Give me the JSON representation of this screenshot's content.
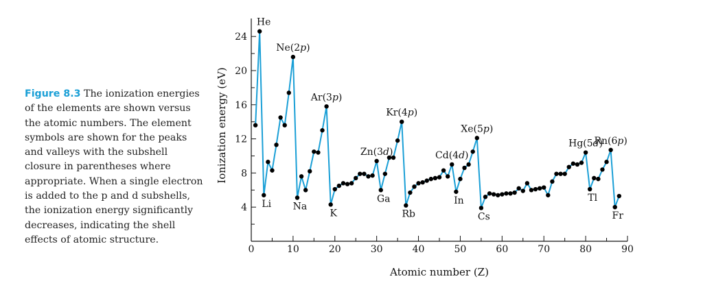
{
  "caption": {
    "label": "Figure 8.3",
    "text": " The ionization energies of the elements are shown versus the atomic numbers. The element symbols are shown for the peaks and valleys with the subshell closure in parentheses where appropriate. When a single electron is added to the p and d subshells, the ionization energy significantly decreases, indicating the shell effects of atomic structure."
  },
  "chart_data": {
    "type": "line",
    "title": "",
    "xlabel": "Atomic number (Z)",
    "ylabel": "Ionization energy (eV)",
    "xlim": [
      0,
      90
    ],
    "ylim": [
      0,
      25
    ],
    "xticks": [
      0,
      10,
      20,
      30,
      40,
      50,
      60,
      70,
      80,
      90
    ],
    "yticks": [
      4,
      8,
      12,
      16,
      20,
      24
    ],
    "grid": false,
    "line_color": "#1a9fd6",
    "marker_color": "#000000",
    "x": [
      1,
      2,
      3,
      4,
      5,
      6,
      7,
      8,
      9,
      10,
      11,
      12,
      13,
      14,
      15,
      16,
      17,
      18,
      19,
      20,
      21,
      22,
      23,
      24,
      25,
      26,
      27,
      28,
      29,
      30,
      31,
      32,
      33,
      34,
      35,
      36,
      37,
      38,
      39,
      40,
      41,
      42,
      43,
      44,
      45,
      46,
      47,
      48,
      49,
      50,
      51,
      52,
      53,
      54,
      55,
      56,
      57,
      58,
      59,
      60,
      61,
      62,
      63,
      64,
      65,
      66,
      67,
      68,
      69,
      70,
      71,
      72,
      73,
      74,
      75,
      76,
      77,
      78,
      79,
      80,
      81,
      82,
      83,
      84,
      85,
      86,
      87,
      88
    ],
    "y": [
      13.6,
      24.6,
      5.4,
      9.3,
      8.3,
      11.3,
      14.5,
      13.6,
      17.4,
      21.6,
      5.1,
      7.6,
      6.0,
      8.2,
      10.5,
      10.4,
      13.0,
      15.8,
      4.3,
      6.1,
      6.5,
      6.8,
      6.7,
      6.8,
      7.4,
      7.9,
      7.9,
      7.6,
      7.7,
      9.4,
      6.0,
      7.9,
      9.8,
      9.8,
      11.8,
      14.0,
      4.2,
      5.7,
      6.4,
      6.8,
      6.9,
      7.1,
      7.3,
      7.4,
      7.5,
      8.3,
      7.6,
      9.0,
      5.8,
      7.3,
      8.6,
      9.0,
      10.5,
      12.1,
      3.9,
      5.2,
      5.6,
      5.5,
      5.4,
      5.5,
      5.6,
      5.6,
      5.7,
      6.2,
      5.9,
      6.8,
      6.0,
      6.1,
      6.2,
      6.3,
      5.4,
      7.0,
      7.9,
      7.9,
      7.9,
      8.7,
      9.1,
      9.0,
      9.2,
      10.4,
      6.1,
      7.4,
      7.3,
      8.4,
      9.3,
      10.7,
      4.0,
      5.3
    ],
    "annotations": [
      {
        "text": "He",
        "z": 2
      },
      {
        "text": "Li",
        "z": 3
      },
      {
        "text": "Ne(2p)",
        "z": 10
      },
      {
        "text": "Na",
        "z": 11
      },
      {
        "text": "Ar(3p)",
        "z": 18
      },
      {
        "text": "K",
        "z": 19
      },
      {
        "text": "Zn(3d)",
        "z": 30
      },
      {
        "text": "Ga",
        "z": 31
      },
      {
        "text": "Kr(4p)",
        "z": 36
      },
      {
        "text": "Rb",
        "z": 37
      },
      {
        "text": "Cd(4d)",
        "z": 48
      },
      {
        "text": "In",
        "z": 49
      },
      {
        "text": "Xe(5p)",
        "z": 54
      },
      {
        "text": "Cs",
        "z": 55
      },
      {
        "text": "Hg(5d)",
        "z": 80
      },
      {
        "text": "Tl",
        "z": 81
      },
      {
        "text": "Rn(6p)",
        "z": 86
      },
      {
        "text": "Fr",
        "z": 87
      }
    ]
  }
}
